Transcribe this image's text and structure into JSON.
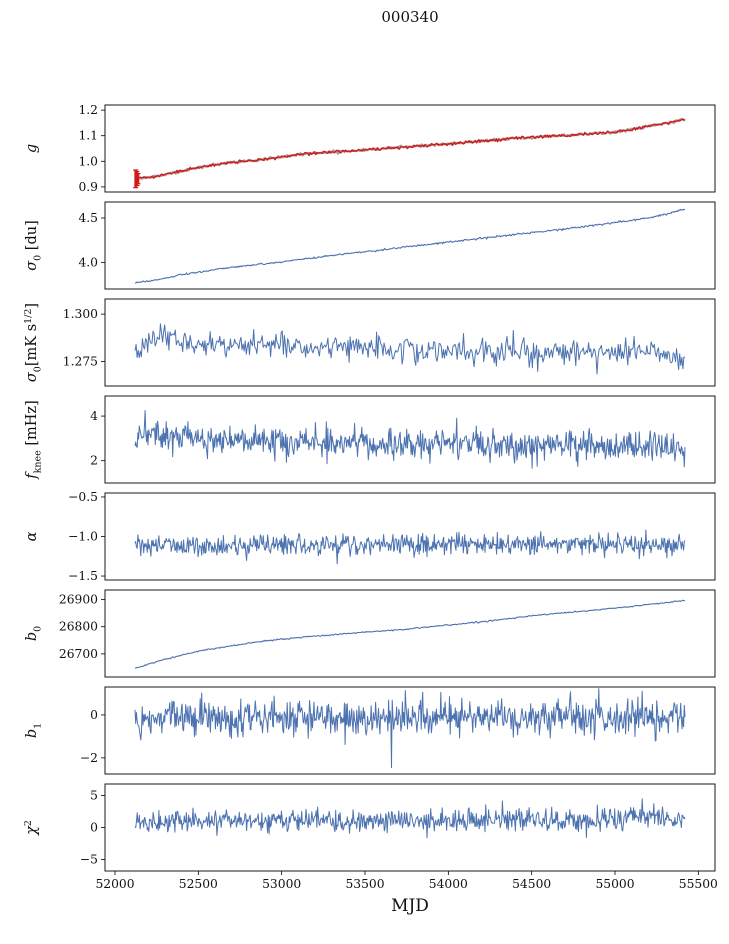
{
  "title": "000340",
  "xlabel": "MJD",
  "chart_data": {
    "type": "line",
    "title": "000340",
    "xlabel": "MJD",
    "xlim": [
      51940,
      55600
    ],
    "xticks": [
      52000,
      52500,
      53000,
      53500,
      54000,
      54500,
      55000,
      55500
    ],
    "xtick_labels": [
      "52000",
      "52500",
      "53000",
      "53500",
      "54000",
      "54500",
      "55000",
      "55500"
    ],
    "colors": {
      "series": "#4c72b0",
      "gain_red": "#d11a1a",
      "reference_gray": "#a0a0a0",
      "axis": "#000000"
    },
    "panels": [
      {
        "id": "g",
        "label": [
          {
            "t": "g",
            "italic": true
          }
        ],
        "ylim": [
          0.88,
          1.22
        ],
        "yticks": [
          0.9,
          1.0,
          1.1,
          1.2
        ],
        "ytick_labels": [
          "0.9",
          "1.0",
          "1.1",
          "1.2"
        ],
        "series": [
          {
            "name": "gain-reference",
            "color": "#a0a0a0",
            "width": 2.2,
            "x0": 52120,
            "x1": 55420,
            "n": 500,
            "noise": 0.0022,
            "seed": 7,
            "trend": [
              [
                52120,
                0.932
              ],
              [
                52250,
                0.941
              ],
              [
                52400,
                0.962
              ],
              [
                52550,
                0.982
              ],
              [
                52700,
                0.996
              ],
              [
                52850,
                1.004
              ],
              [
                53000,
                1.017
              ],
              [
                53150,
                1.03
              ],
              [
                53300,
                1.037
              ],
              [
                53450,
                1.042
              ],
              [
                53600,
                1.049
              ],
              [
                53750,
                1.057
              ],
              [
                54000,
                1.068
              ],
              [
                54250,
                1.082
              ],
              [
                54500,
                1.094
              ],
              [
                54750,
                1.103
              ],
              [
                55000,
                1.114
              ],
              [
                55150,
                1.131
              ],
              [
                55300,
                1.149
              ],
              [
                55420,
                1.163
              ]
            ]
          },
          {
            "name": "gain",
            "color": "#d11a1a",
            "width": 1.4,
            "x0": 52120,
            "x1": 55420,
            "n": 500,
            "noise": 0.0028,
            "seed": 8,
            "trend": [
              [
                52120,
                0.932
              ],
              [
                52250,
                0.941
              ],
              [
                52400,
                0.962
              ],
              [
                52550,
                0.982
              ],
              [
                52700,
                0.996
              ],
              [
                52850,
                1.004
              ],
              [
                53000,
                1.017
              ],
              [
                53150,
                1.03
              ],
              [
                53300,
                1.037
              ],
              [
                53450,
                1.042
              ],
              [
                53600,
                1.049
              ],
              [
                53750,
                1.057
              ],
              [
                54000,
                1.068
              ],
              [
                54250,
                1.082
              ],
              [
                54500,
                1.094
              ],
              [
                54750,
                1.103
              ],
              [
                55000,
                1.114
              ],
              [
                55150,
                1.131
              ],
              [
                55300,
                1.149
              ],
              [
                55420,
                1.163
              ]
            ]
          }
        ],
        "errorbars": [
          {
            "x": 52124,
            "ylow": 0.897,
            "yhigh": 0.966
          },
          {
            "x": 52131,
            "ylow": 0.905,
            "yhigh": 0.96
          },
          {
            "x": 52138,
            "ylow": 0.912,
            "yhigh": 0.952
          }
        ],
        "errorbar_color": "#d11a1a"
      },
      {
        "id": "sigma0-du",
        "label": [
          {
            "t": "σ",
            "italic": true
          },
          {
            "t": "0",
            "pos": "sub"
          },
          {
            "t": " [du]"
          }
        ],
        "ylim": [
          3.7,
          4.68
        ],
        "yticks": [
          4.0,
          4.5
        ],
        "ytick_labels": [
          "4.0",
          "4.5"
        ],
        "series": [
          {
            "name": "sigma0-du",
            "color": "#4c72b0",
            "width": 1.1,
            "x0": 52120,
            "x1": 55420,
            "n": 600,
            "noise": 0.005,
            "seed": 21,
            "trend": [
              [
                52120,
                3.772
              ],
              [
                52250,
                3.8
              ],
              [
                52400,
                3.862
              ],
              [
                52550,
                3.905
              ],
              [
                52700,
                3.945
              ],
              [
                52850,
                3.975
              ],
              [
                53000,
                4.005
              ],
              [
                53200,
                4.055
              ],
              [
                53400,
                4.1
              ],
              [
                53600,
                4.14
              ],
              [
                53800,
                4.185
              ],
              [
                54000,
                4.23
              ],
              [
                54200,
                4.27
              ],
              [
                54400,
                4.315
              ],
              [
                54600,
                4.355
              ],
              [
                54800,
                4.4
              ],
              [
                55000,
                4.45
              ],
              [
                55200,
                4.5
              ],
              [
                55300,
                4.54
              ],
              [
                55420,
                4.6
              ]
            ]
          }
        ],
        "errorbars": []
      },
      {
        "id": "sigma0-mk",
        "label": [
          {
            "t": "σ",
            "italic": true
          },
          {
            "t": "0",
            "pos": "sub"
          },
          {
            "t": "[mK s"
          },
          {
            "t": "1/2",
            "pos": "sup"
          },
          {
            "t": "]"
          }
        ],
        "ylim": [
          1.262,
          1.308
        ],
        "yticks": [
          1.275,
          1.3
        ],
        "ytick_labels": [
          "1.275",
          "1.300"
        ],
        "series": [
          {
            "name": "sigma0-mk",
            "color": "#4c72b0",
            "width": 1.0,
            "x0": 52120,
            "x1": 55420,
            "n": 520,
            "noise": 0.0034,
            "seed": 31,
            "trend": [
              [
                52120,
                1.278
              ],
              [
                52200,
                1.285
              ],
              [
                52300,
                1.289
              ],
              [
                52450,
                1.286
              ],
              [
                52600,
                1.283
              ],
              [
                52800,
                1.285
              ],
              [
                53000,
                1.284
              ],
              [
                53200,
                1.282
              ],
              [
                53400,
                1.284
              ],
              [
                53600,
                1.282
              ],
              [
                53800,
                1.281
              ],
              [
                54000,
                1.281
              ],
              [
                54200,
                1.28
              ],
              [
                54400,
                1.281
              ],
              [
                54600,
                1.28
              ],
              [
                54800,
                1.281
              ],
              [
                55000,
                1.28
              ],
              [
                55200,
                1.281
              ],
              [
                55350,
                1.277
              ],
              [
                55420,
                1.276
              ]
            ]
          }
        ],
        "errorbars": []
      },
      {
        "id": "fknee",
        "label": [
          {
            "t": "f",
            "italic": true
          },
          {
            "t": "knee",
            "pos": "sub"
          },
          {
            "t": " [mHz]"
          }
        ],
        "ylim": [
          1.0,
          4.9
        ],
        "yticks": [
          2,
          4
        ],
        "ytick_labels": [
          "2",
          "4"
        ],
        "series": [
          {
            "name": "fknee",
            "color": "#4c72b0",
            "width": 1.0,
            "x0": 52120,
            "x1": 55420,
            "n": 760,
            "noise": 0.33,
            "seed": 41,
            "trend": [
              [
                52120,
                3.3
              ],
              [
                52300,
                3.1
              ],
              [
                52500,
                3.0
              ],
              [
                52700,
                2.95
              ],
              [
                53000,
                2.85
              ],
              [
                53500,
                2.8
              ],
              [
                54000,
                2.8
              ],
              [
                54500,
                2.7
              ],
              [
                55000,
                2.65
              ],
              [
                55420,
                2.6
              ]
            ],
            "spikes": [
              [
                52180,
                4.25
              ],
              [
                54050,
                3.9
              ]
            ]
          }
        ],
        "errorbars": []
      },
      {
        "id": "alpha",
        "label": [
          {
            "t": "α",
            "italic": true
          }
        ],
        "ylim": [
          -1.55,
          -0.45
        ],
        "yticks": [
          -1.5,
          -1.0,
          -0.5
        ],
        "ytick_labels": [
          "−1.5",
          "−1.0",
          "−0.5"
        ],
        "series": [
          {
            "name": "alpha",
            "color": "#4c72b0",
            "width": 1.0,
            "x0": 52120,
            "x1": 55420,
            "n": 760,
            "noise": 0.065,
            "seed": 51,
            "trend": [
              [
                52120,
                -1.12
              ],
              [
                53500,
                -1.11
              ],
              [
                55420,
                -1.1
              ]
            ]
          }
        ],
        "errorbars": []
      },
      {
        "id": "b0",
        "label": [
          {
            "t": "b",
            "italic": true
          },
          {
            "t": "0",
            "pos": "sub"
          }
        ],
        "ylim": [
          26615,
          26935
        ],
        "yticks": [
          26700,
          26800,
          26900
        ],
        "ytick_labels": [
          "26700",
          "26800",
          "26900"
        ],
        "series": [
          {
            "name": "b0",
            "color": "#4c72b0",
            "width": 1.1,
            "x0": 52120,
            "x1": 55420,
            "n": 500,
            "noise": 1.2,
            "seed": 61,
            "trend": [
              [
                52120,
                26648
              ],
              [
                52300,
                26680
              ],
              [
                52500,
                26710
              ],
              [
                52700,
                26730
              ],
              [
                52900,
                26748
              ],
              [
                53100,
                26760
              ],
              [
                53300,
                26770
              ],
              [
                53500,
                26780
              ],
              [
                53700,
                26788
              ],
              [
                53900,
                26800
              ],
              [
                54100,
                26812
              ],
              [
                54300,
                26825
              ],
              [
                54500,
                26840
              ],
              [
                54700,
                26852
              ],
              [
                54900,
                26862
              ],
              [
                55100,
                26875
              ],
              [
                55300,
                26888
              ],
              [
                55420,
                26897
              ]
            ]
          }
        ],
        "errorbars": []
      },
      {
        "id": "b1",
        "label": [
          {
            "t": "b",
            "italic": true
          },
          {
            "t": "1",
            "pos": "sub"
          }
        ],
        "ylim": [
          -2.75,
          1.3
        ],
        "yticks": [
          -2,
          0
        ],
        "ytick_labels": [
          "−2",
          "0"
        ],
        "series": [
          {
            "name": "b1",
            "color": "#4c72b0",
            "width": 1.0,
            "x0": 52120,
            "x1": 55420,
            "n": 760,
            "noise": 0.42,
            "seed": 71,
            "trend": [
              [
                52120,
                -0.15
              ],
              [
                53700,
                -0.12
              ],
              [
                55420,
                -0.1
              ]
            ],
            "spikes": [
              [
                53660,
                -2.45
              ]
            ]
          }
        ],
        "errorbars": []
      },
      {
        "id": "chi2",
        "label": [
          {
            "t": "χ",
            "italic": true
          },
          {
            "t": "2",
            "pos": "sup"
          }
        ],
        "ylim": [
          -6.8,
          6.8
        ],
        "yticks": [
          -5,
          0,
          5
        ],
        "ytick_labels": [
          "−5",
          "0",
          "5"
        ],
        "series": [
          {
            "name": "chi2",
            "color": "#4c72b0",
            "width": 1.0,
            "x0": 52120,
            "x1": 55420,
            "n": 760,
            "noise": 0.9,
            "seed": 81,
            "trend": [
              [
                52120,
                0.8
              ],
              [
                52600,
                1.0
              ],
              [
                53000,
                1.1
              ],
              [
                53400,
                0.9
              ],
              [
                53700,
                1.2
              ],
              [
                54100,
                1.0
              ],
              [
                54500,
                1.3
              ],
              [
                54800,
                1.1
              ],
              [
                55100,
                1.6
              ],
              [
                55420,
                1.5
              ]
            ]
          }
        ],
        "errorbars": []
      }
    ]
  }
}
